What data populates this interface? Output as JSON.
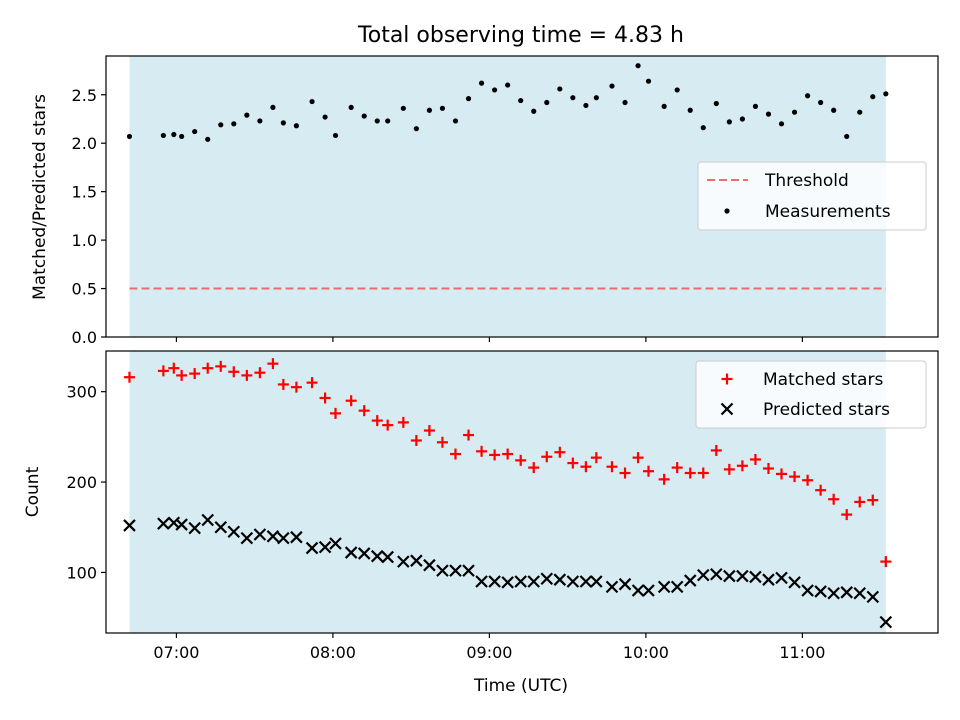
{
  "title": "Total observing time = 4.83 h",
  "xlabel": "Time (UTC)",
  "x_ticks": [
    "07:00",
    "08:00",
    "09:00",
    "10:00",
    "11:00"
  ],
  "colors": {
    "shade": "#add8e6",
    "threshold": "#e86f6f",
    "matched": "#ff0000",
    "predicted": "#000000",
    "measurements": "#000000"
  },
  "chart_data": [
    {
      "type": "scatter",
      "ylabel": "Matched/Predicted stars",
      "ylim": [
        0,
        2.9
      ],
      "xlim": [
        "06:33",
        "11:52"
      ],
      "y_ticks": [
        "0.0",
        "0.5",
        "1.0",
        "1.5",
        "2.0",
        "2.5"
      ],
      "shaded_interval": [
        "06:42",
        "11:32"
      ],
      "threshold": 0.5,
      "legend_location": "center right",
      "legend": [
        "Threshold",
        "Measurements"
      ],
      "series": [
        {
          "name": "Measurements",
          "marker": "dot",
          "x": [
            "06:42",
            "06:55",
            "06:59",
            "07:02",
            "07:07",
            "07:12",
            "07:17",
            "07:22",
            "07:27",
            "07:32",
            "07:37",
            "07:41",
            "07:46",
            "07:52",
            "07:57",
            "08:01",
            "08:07",
            "08:12",
            "08:17",
            "08:21",
            "08:27",
            "08:32",
            "08:37",
            "08:42",
            "08:47",
            "08:52",
            "08:57",
            "09:02",
            "09:07",
            "09:12",
            "09:17",
            "09:22",
            "09:27",
            "09:32",
            "09:37",
            "09:41",
            "09:47",
            "09:52",
            "09:57",
            "10:01",
            "10:07",
            "10:12",
            "10:17",
            "10:22",
            "10:27",
            "10:32",
            "10:37",
            "10:42",
            "10:47",
            "10:52",
            "10:57",
            "11:02",
            "11:07",
            "11:12",
            "11:17",
            "11:22",
            "11:27",
            "11:32"
          ],
          "y": [
            2.07,
            2.08,
            2.09,
            2.07,
            2.12,
            2.04,
            2.19,
            2.2,
            2.29,
            2.23,
            2.37,
            2.21,
            2.18,
            2.43,
            2.27,
            2.08,
            2.37,
            2.28,
            2.23,
            2.23,
            2.36,
            2.15,
            2.34,
            2.36,
            2.23,
            2.46,
            2.62,
            2.55,
            2.6,
            2.44,
            2.33,
            2.42,
            2.56,
            2.47,
            2.39,
            2.47,
            2.59,
            2.42,
            2.8,
            2.64,
            2.38,
            2.55,
            2.34,
            2.16,
            2.41,
            2.22,
            2.25,
            2.38,
            2.3,
            2.2,
            2.32,
            2.49,
            2.42,
            2.34,
            2.07,
            2.32,
            2.48,
            2.51
          ]
        }
      ]
    },
    {
      "type": "scatter",
      "ylabel": "Count",
      "ylim": [
        33,
        345
      ],
      "xlim": [
        "06:33",
        "11:52"
      ],
      "y_ticks": [
        "100",
        "200",
        "300"
      ],
      "shaded_interval": [
        "06:42",
        "11:32"
      ],
      "legend_location": "upper right",
      "legend": [
        "Matched stars",
        "Predicted stars"
      ],
      "series": [
        {
          "name": "Matched stars",
          "marker": "+",
          "x": [
            "06:42",
            "06:55",
            "06:59",
            "07:02",
            "07:07",
            "07:12",
            "07:17",
            "07:22",
            "07:27",
            "07:32",
            "07:37",
            "07:41",
            "07:46",
            "07:52",
            "07:57",
            "08:01",
            "08:07",
            "08:12",
            "08:17",
            "08:21",
            "08:27",
            "08:32",
            "08:37",
            "08:42",
            "08:47",
            "08:52",
            "08:57",
            "09:02",
            "09:07",
            "09:12",
            "09:17",
            "09:22",
            "09:27",
            "09:32",
            "09:37",
            "09:41",
            "09:47",
            "09:52",
            "09:57",
            "10:01",
            "10:07",
            "10:12",
            "10:17",
            "10:22",
            "10:27",
            "10:32",
            "10:37",
            "10:42",
            "10:47",
            "10:52",
            "10:57",
            "11:02",
            "11:07",
            "11:12",
            "11:17",
            "11:22",
            "11:27",
            "11:32"
          ],
          "y": [
            316,
            323,
            326,
            318,
            320,
            326,
            328,
            322,
            318,
            321,
            331,
            308,
            305,
            310,
            293,
            276,
            290,
            279,
            268,
            263,
            266,
            246,
            257,
            244,
            231,
            252,
            234,
            230,
            231,
            224,
            216,
            228,
            233,
            221,
            217,
            227,
            217,
            210,
            227,
            212,
            203,
            216,
            210,
            210,
            235,
            214,
            218,
            225,
            215,
            209,
            206,
            202,
            191,
            181,
            164,
            178,
            180,
            112
          ]
        },
        {
          "name": "Predicted stars",
          "marker": "x",
          "x": [
            "06:42",
            "06:55",
            "06:59",
            "07:02",
            "07:07",
            "07:12",
            "07:17",
            "07:22",
            "07:27",
            "07:32",
            "07:37",
            "07:41",
            "07:46",
            "07:52",
            "07:57",
            "08:01",
            "08:07",
            "08:12",
            "08:17",
            "08:21",
            "08:27",
            "08:32",
            "08:37",
            "08:42",
            "08:47",
            "08:52",
            "08:57",
            "09:02",
            "09:07",
            "09:12",
            "09:17",
            "09:22",
            "09:27",
            "09:32",
            "09:37",
            "09:41",
            "09:47",
            "09:52",
            "09:57",
            "10:01",
            "10:07",
            "10:12",
            "10:17",
            "10:22",
            "10:27",
            "10:32",
            "10:37",
            "10:42",
            "10:47",
            "10:52",
            "10:57",
            "11:02",
            "11:07",
            "11:12",
            "11:17",
            "11:22",
            "11:27",
            "11:32"
          ],
          "y": [
            152,
            154,
            155,
            153,
            149,
            158,
            150,
            145,
            138,
            142,
            140,
            138,
            139,
            127,
            128,
            132,
            122,
            121,
            118,
            117,
            112,
            113,
            108,
            102,
            102,
            102,
            90,
            90,
            89,
            90,
            90,
            93,
            92,
            90,
            90,
            90,
            84,
            87,
            80,
            80,
            84,
            84,
            91,
            97,
            98,
            96,
            96,
            95,
            92,
            94,
            89,
            80,
            79,
            77,
            78,
            77,
            73,
            45
          ]
        }
      ]
    }
  ]
}
